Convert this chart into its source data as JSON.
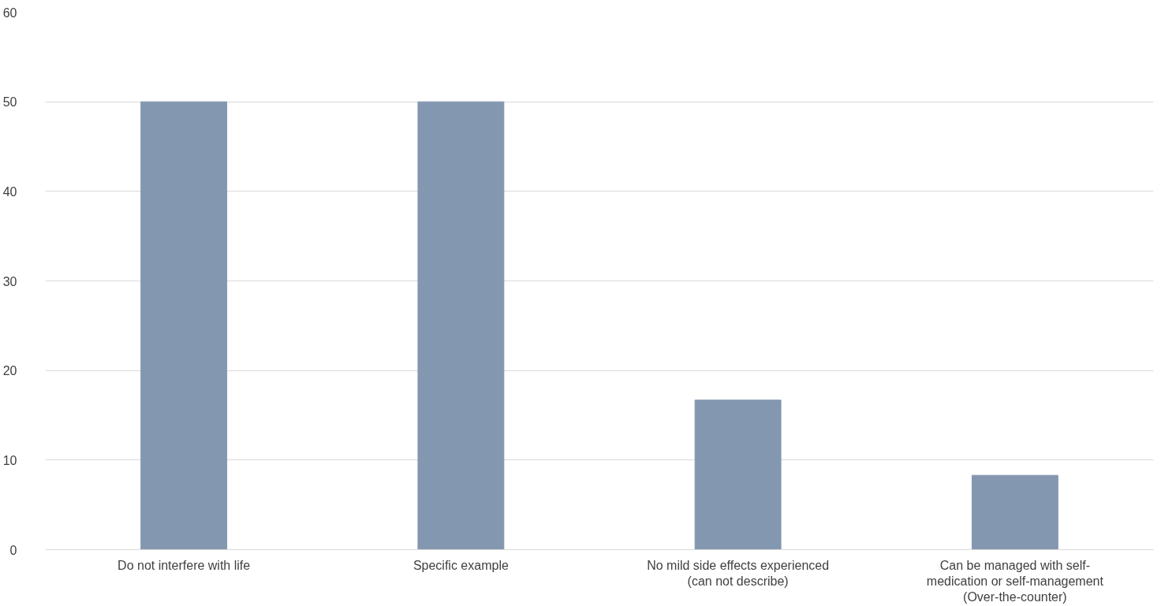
{
  "chart_data": {
    "type": "bar",
    "categories": [
      "Do not interfere with life",
      "Specific example",
      "No mild side effects experienced\n(can not describe)",
      "Can be managed with self-\nmedication or self-management\n(Over-the-counter)"
    ],
    "values": [
      50,
      50,
      16.7,
      8.3
    ],
    "color": "#8497b0",
    "ylim": [
      0,
      60
    ],
    "yticks": [
      0,
      10,
      20,
      30,
      40,
      50,
      60
    ],
    "grid": "y"
  }
}
